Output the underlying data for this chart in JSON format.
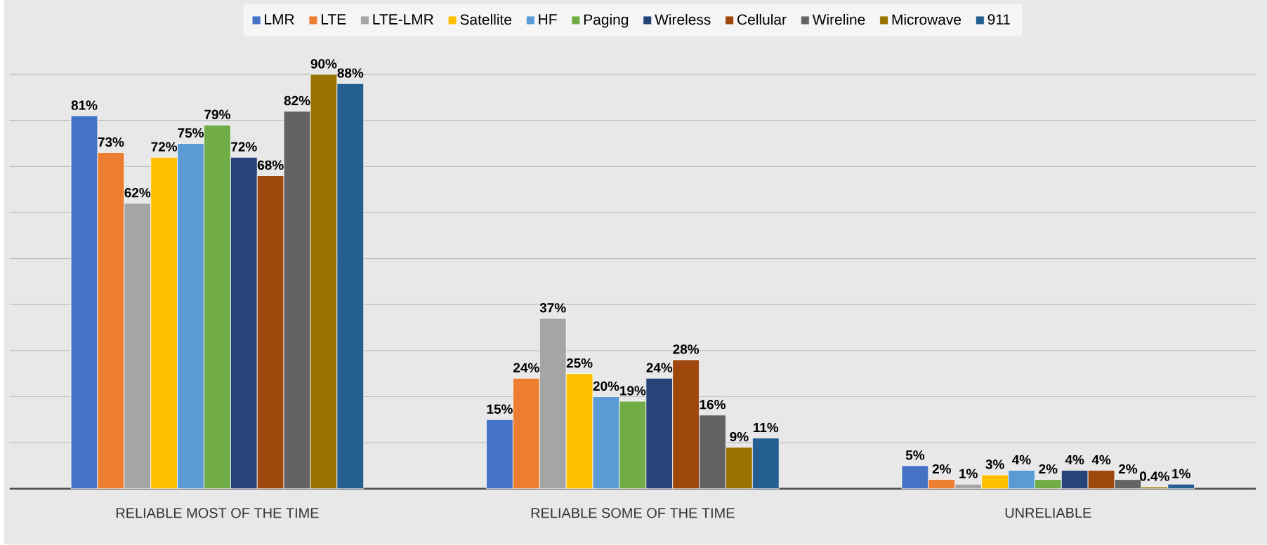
{
  "chart_data": {
    "type": "bar",
    "categories": [
      "RELIABLE MOST OF THE TIME",
      "RELIABLE SOME OF THE TIME",
      "UNRELIABLE"
    ],
    "series": [
      {
        "name": "LMR",
        "color": "#4472c4",
        "values": [
          81,
          15,
          5
        ],
        "value_labels": [
          "81%",
          "15%",
          "5%"
        ]
      },
      {
        "name": "LTE",
        "color": "#ed7d31",
        "values": [
          73,
          24,
          2
        ],
        "value_labels": [
          "73%",
          "24%",
          "2%"
        ]
      },
      {
        "name": "LTE-LMR",
        "color": "#a5a5a5",
        "values": [
          62,
          37,
          1
        ],
        "value_labels": [
          "62%",
          "37%",
          "1%"
        ]
      },
      {
        "name": "Satellite",
        "color": "#ffc000",
        "values": [
          72,
          25,
          3
        ],
        "value_labels": [
          "72%",
          "25%",
          "3%"
        ]
      },
      {
        "name": "HF",
        "color": "#5b9bd5",
        "values": [
          75,
          20,
          4
        ],
        "value_labels": [
          "75%",
          "20%",
          "4%"
        ]
      },
      {
        "name": "Paging",
        "color": "#70ad47",
        "values": [
          79,
          19,
          2
        ],
        "value_labels": [
          "79%",
          "19%",
          "2%"
        ]
      },
      {
        "name": "Wireless",
        "color": "#264478",
        "values": [
          72,
          24,
          4
        ],
        "value_labels": [
          "72%",
          "24%",
          "4%"
        ]
      },
      {
        "name": "Cellular",
        "color": "#9e480e",
        "values": [
          68,
          28,
          4
        ],
        "value_labels": [
          "68%",
          "28%",
          "4%"
        ]
      },
      {
        "name": "Wireline",
        "color": "#636363",
        "values": [
          82,
          16,
          2
        ],
        "value_labels": [
          "82%",
          "16%",
          "2%"
        ]
      },
      {
        "name": "Microwave",
        "color": "#997300",
        "values": [
          90,
          9,
          0.4
        ],
        "value_labels": [
          "90%",
          "9%",
          "0.4%"
        ]
      },
      {
        "name": "911",
        "color": "#255e91",
        "values": [
          88,
          11,
          1
        ],
        "value_labels": [
          "88%",
          "11%",
          "1%"
        ]
      }
    ],
    "tick_labels": "x",
    "grid": "y",
    "legend": "top"
  }
}
